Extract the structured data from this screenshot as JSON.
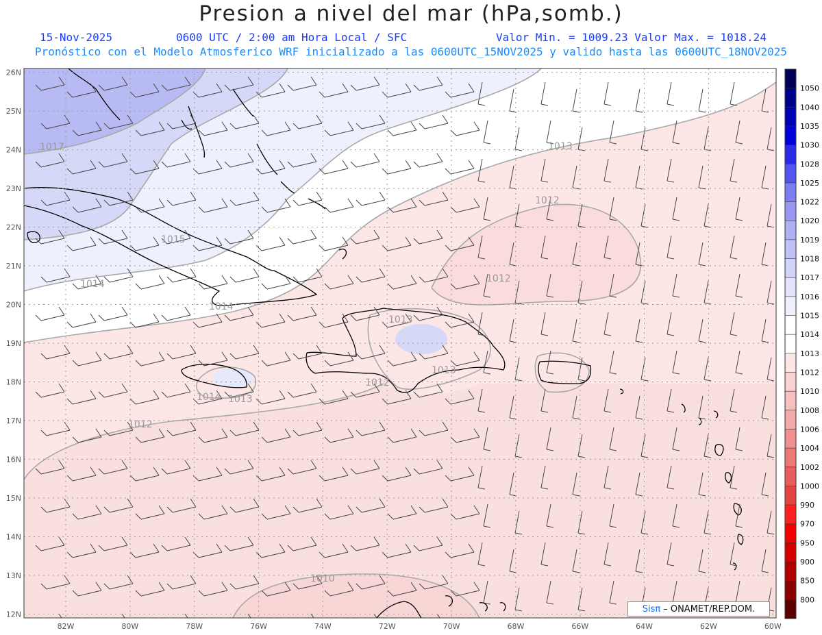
{
  "header": {
    "title": "Presion a nivel del mar (hPa,somb.)",
    "date": "15-Nov-2025",
    "time": "0600 UTC / 2:00 am Hora Local / SFC",
    "minmax": "Valor Min. = 1009.23  Valor Max. = 1018.24",
    "model_line": "Pronóstico con el Modelo Atmosferico WRF inicializado a las 0600UTC_15NOV2025 y valido hasta las  0600UTC_18NOV2025"
  },
  "map": {
    "lon_range": [
      -83.3,
      -59.9
    ],
    "lat_range": [
      11.9,
      26.1
    ],
    "lon_labels": [
      "82W",
      "80W",
      "78W",
      "76W",
      "74W",
      "72W",
      "70W",
      "68W",
      "66W",
      "64W",
      "62W",
      "60W"
    ],
    "lat_labels": [
      "26N",
      "25N",
      "24N",
      "23N",
      "22N",
      "21N",
      "20N",
      "19N",
      "18N",
      "17N",
      "16N",
      "15N",
      "14N",
      "13N",
      "12N"
    ],
    "contour_labels": [
      {
        "text": "1017"
      },
      {
        "text": "1015"
      },
      {
        "text": "1014"
      },
      {
        "text": "1013"
      },
      {
        "text": "1014"
      },
      {
        "text": "1012"
      },
      {
        "text": "1012"
      },
      {
        "text": "1013"
      },
      {
        "text": "1012"
      },
      {
        "text": "1013"
      },
      {
        "text": "1014"
      },
      {
        "text": "1013"
      },
      {
        "text": "1012"
      },
      {
        "text": "1010"
      }
    ],
    "colors": {
      "deep_blue": "#aeb1f2",
      "mid_blue": "#c9cbf6",
      "light_blue": "#e3e4fb",
      "white": "#ffffff",
      "pink": "#fce6e6",
      "pink2": "#f9d2d2",
      "contour": "#a8a8a8",
      "coast": "#000000"
    }
  },
  "colorbar": {
    "labels": [
      "1050",
      "1040",
      "1035",
      "1030",
      "1028",
      "1025",
      "1022",
      "1020",
      "1019",
      "1018",
      "1017",
      "1016",
      "1015",
      "1014",
      "1013",
      "1012",
      "1010",
      "1008",
      "1006",
      "1004",
      "1002",
      "1000",
      "990",
      "970",
      "950",
      "900",
      "850",
      "800"
    ],
    "colors": [
      "#000054",
      "#00008c",
      "#0000b4",
      "#0000d8",
      "#2a2ae8",
      "#5454f0",
      "#7e7ef4",
      "#9898f5",
      "#aeb1f2",
      "#c0c2f5",
      "#d2d3f8",
      "#e3e4fb",
      "#eff0fd",
      "#ffffff",
      "#ffffff",
      "#fce6e6",
      "#f9d2d2",
      "#f6c0c0",
      "#f3aaaa",
      "#f09090",
      "#ec7878",
      "#e85e5e",
      "#e44444",
      "#ff2020",
      "#f20000",
      "#d40000",
      "#b00000",
      "#880000",
      "#5a0000"
    ]
  },
  "credit": {
    "brand": "Sisπ",
    "text": "– ONAMET/REP.DOM."
  }
}
